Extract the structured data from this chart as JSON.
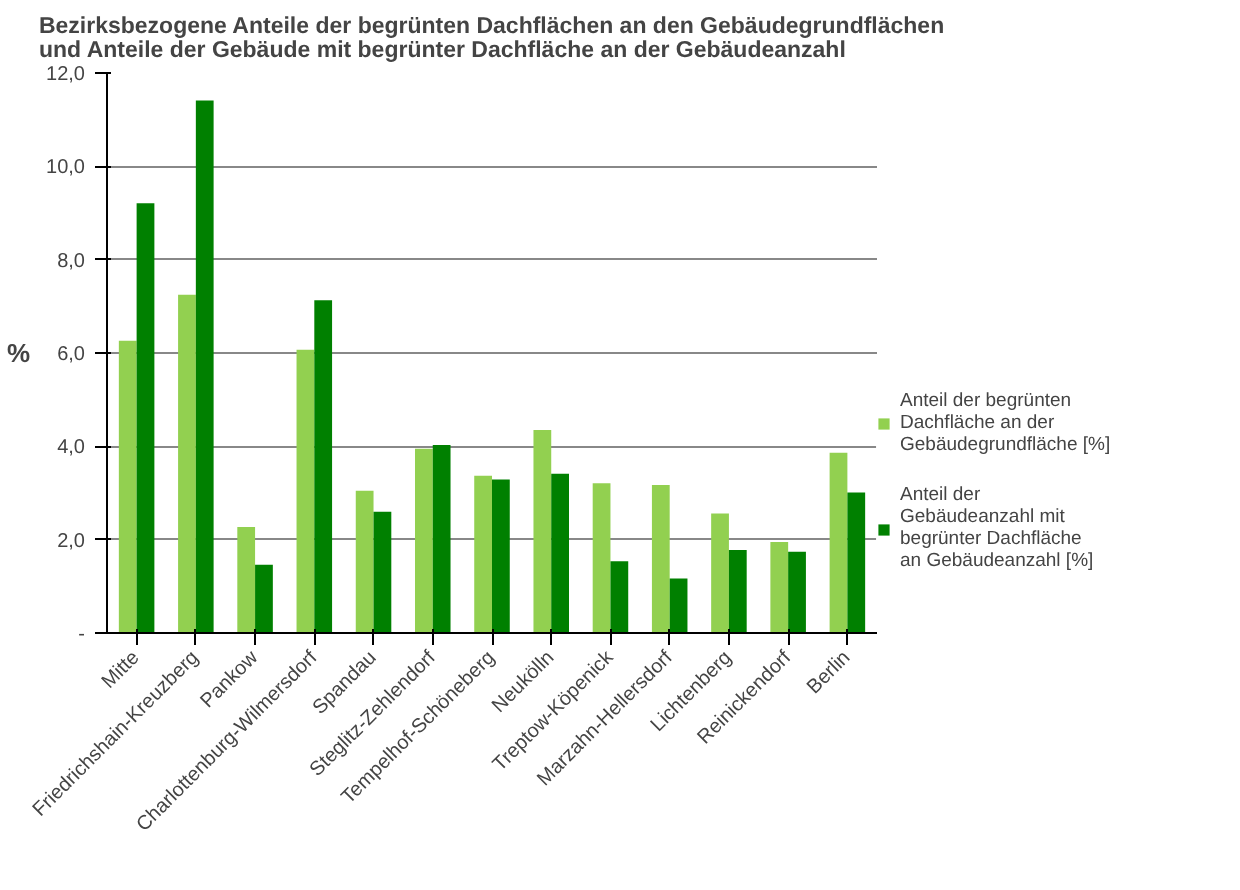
{
  "chart_data": {
    "type": "bar",
    "title": "Bezirksbezogene Anteile der begrünten Dachflächen an den Gebäudegrundflächen und Anteile der Gebäude mit begrünter Dachfläche an der Gebäudeanzahl",
    "ylabel": "%",
    "categories": [
      "Mitte",
      "Friedrichshain-Kreuzberg",
      "Pankow",
      "Charlottenburg-Wilmersdorf",
      "Spandau",
      "Steglitz-Zehlendorf",
      "Tempelhof-Schöneberg",
      "Neukölln",
      "Treptow-Köpenick",
      "Marzahn-Hellersdorf",
      "Lichtenberg",
      "Reinickendorf",
      "Berlin"
    ],
    "series": [
      {
        "name": "Anteil der begrünten Dachfläche an der Gebäudegrundfläche [%]",
        "color": "#92d050",
        "values": [
          6.26,
          7.25,
          2.27,
          6.07,
          3.05,
          3.95,
          3.37,
          4.35,
          3.21,
          3.17,
          2.56,
          1.95,
          3.86
        ]
      },
      {
        "name": "Anteil der Gebäudeanzahl mit begrünter Dachfläche an Gebäudeanzahl [%]",
        "color": "#008000",
        "values": [
          9.21,
          11.41,
          1.46,
          7.13,
          2.6,
          4.03,
          3.29,
          3.41,
          1.54,
          1.17,
          1.78,
          1.74,
          3.01
        ]
      }
    ],
    "ylim": [
      0,
      12
    ],
    "yticks": [
      {
        "value": 0,
        "label": "-"
      },
      {
        "value": 2,
        "label": "2,0"
      },
      {
        "value": 4,
        "label": "4,0"
      },
      {
        "value": 6,
        "label": "6,0"
      },
      {
        "value": 8,
        "label": "8,0"
      },
      {
        "value": 10,
        "label": "10,0"
      },
      {
        "value": 12,
        "label": "12,0"
      }
    ],
    "grid": "y",
    "legend": "right"
  }
}
